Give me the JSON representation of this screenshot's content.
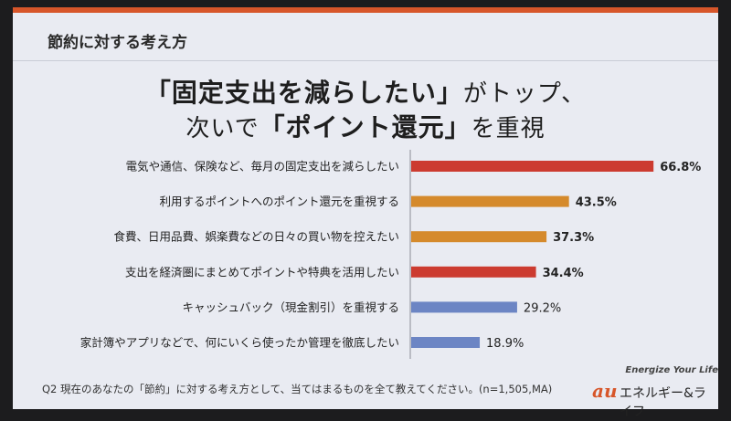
{
  "header": {
    "title": "節約に対する考え方"
  },
  "headline": {
    "line1_strong": "「固定支出を減らしたい」",
    "line1_rest": "がトップ、",
    "line2_pre": "次いで",
    "line2_strong": "「ポイント還元」",
    "line2_rest": "を重視"
  },
  "footer": {
    "note": "Q2 現在のあなたの「節約」に対する考え方として、当てはまるものを全て教えてください。(n=1,505,MA)"
  },
  "logo": {
    "tagline": "Energize Your Life",
    "mark": "au",
    "name": "エネルギー&ライフ"
  },
  "colors": {
    "red": "#cc3b30",
    "orange": "#d58a2c",
    "blue": "#6c85c4",
    "background": "#e9ebf2",
    "accent": "#d7562a"
  },
  "chart_data": {
    "type": "bar",
    "orientation": "horizontal",
    "categories": [
      "電気や通信、保険など、毎月の固定支出を減らしたい",
      "利用するポイントへのポイント還元を重視する",
      "食費、日用品費、娯楽費などの日々の買い物を控えたい",
      "支出を経済圏にまとめてポイントや特典を活用したい",
      "キャッシュバック（現金割引）を重視する",
      "家計簿やアプリなどで、何にいくら使ったか管理を徹底したい"
    ],
    "values": [
      66.8,
      43.5,
      37.3,
      34.4,
      29.2,
      18.9
    ],
    "value_labels": [
      "66.8%",
      "43.5%",
      "37.3%",
      "34.4%",
      "29.2%",
      "18.9%"
    ],
    "bar_colors": [
      "#cc3b30",
      "#d58a2c",
      "#d58a2c",
      "#cc3b30",
      "#6c85c4",
      "#6c85c4"
    ],
    "bold_labels": [
      true,
      true,
      true,
      true,
      false,
      false
    ],
    "xlim": [
      0,
      100
    ],
    "grid": false
  }
}
